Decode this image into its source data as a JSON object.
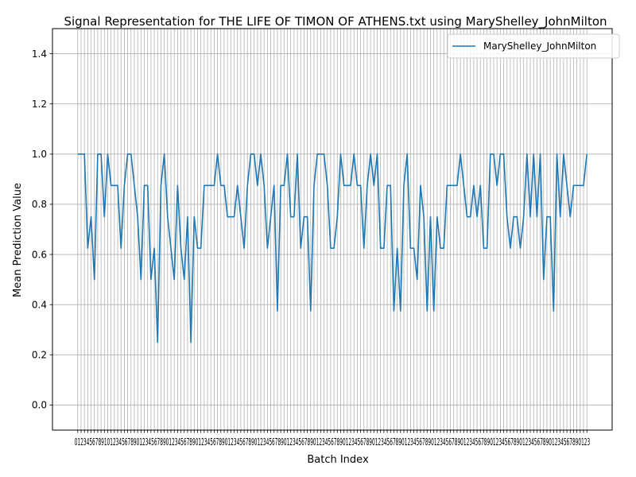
{
  "chart_data": {
    "type": "line",
    "title": "Signal Representation for THE LIFE OF TIMON OF ATHENS.txt using MaryShelley_JohnMilton",
    "xlabel": "Batch Index",
    "ylabel": "Mean Prediction Value",
    "xlim": [
      -7.6,
      160.6
    ],
    "ylim": [
      -0.1,
      1.5
    ],
    "yticks": [
      0.0,
      0.2,
      0.4,
      0.6,
      0.8,
      1.0,
      1.2,
      1.4
    ],
    "ytick_labels": [
      "0.0",
      "0.2",
      "0.4",
      "0.6",
      "0.8",
      "1.0",
      "1.2",
      "1.4"
    ],
    "x_tick_step": 1,
    "x_tick_labels_text": "0123456789101234567890123456789012345678901234567890123456789012345678901234567890123456789012345678901234567890123456789012345678901234567890123456789012345678901234567890123",
    "grid": true,
    "legend": {
      "position": "upper right",
      "entries": [
        "MaryShelley_JohnMilton"
      ]
    },
    "series": [
      {
        "name": "MaryShelley_JohnMilton",
        "color": "#1f77b4",
        "x_start": 0,
        "values": [
          1.0,
          1.0,
          1.0,
          0.625,
          0.75,
          0.5,
          1.0,
          1.0,
          0.75,
          1.0,
          0.875,
          0.875,
          0.875,
          0.625,
          0.875,
          1.0,
          1.0,
          0.875,
          0.75,
          0.5,
          0.875,
          0.875,
          0.5,
          0.625,
          0.25,
          0.875,
          1.0,
          0.75,
          0.625,
          0.5,
          0.875,
          0.625,
          0.5,
          0.75,
          0.25,
          0.75,
          0.625,
          0.625,
          0.875,
          0.875,
          0.875,
          0.875,
          1.0,
          0.875,
          0.875,
          0.75,
          0.75,
          0.75,
          0.875,
          0.75,
          0.625,
          0.875,
          1.0,
          1.0,
          0.875,
          1.0,
          0.875,
          0.625,
          0.75,
          0.875,
          0.375,
          0.875,
          0.875,
          1.0,
          0.75,
          0.75,
          1.0,
          0.625,
          0.75,
          0.75,
          0.375,
          0.875,
          1.0,
          1.0,
          1.0,
          0.875,
          0.625,
          0.625,
          0.75,
          1.0,
          0.875,
          0.875,
          0.875,
          1.0,
          0.875,
          0.875,
          0.625,
          0.875,
          1.0,
          0.875,
          1.0,
          0.625,
          0.625,
          0.875,
          0.875,
          0.375,
          0.625,
          0.375,
          0.875,
          1.0,
          0.625,
          0.625,
          0.5,
          0.875,
          0.75,
          0.375,
          0.75,
          0.375,
          0.75,
          0.625,
          0.625,
          0.875,
          0.875,
          0.875,
          0.875,
          1.0,
          0.875,
          0.75,
          0.75,
          0.875,
          0.75,
          0.875,
          0.625,
          0.625,
          1.0,
          1.0,
          0.875,
          1.0,
          1.0,
          0.75,
          0.625,
          0.75,
          0.75,
          0.625,
          0.75,
          1.0,
          0.75,
          1.0,
          0.75,
          1.0,
          0.5,
          0.75,
          0.75,
          0.375,
          1.0,
          0.75,
          1.0,
          0.875,
          0.75,
          0.875,
          0.875,
          0.875,
          0.875,
          1.0
        ]
      }
    ]
  }
}
